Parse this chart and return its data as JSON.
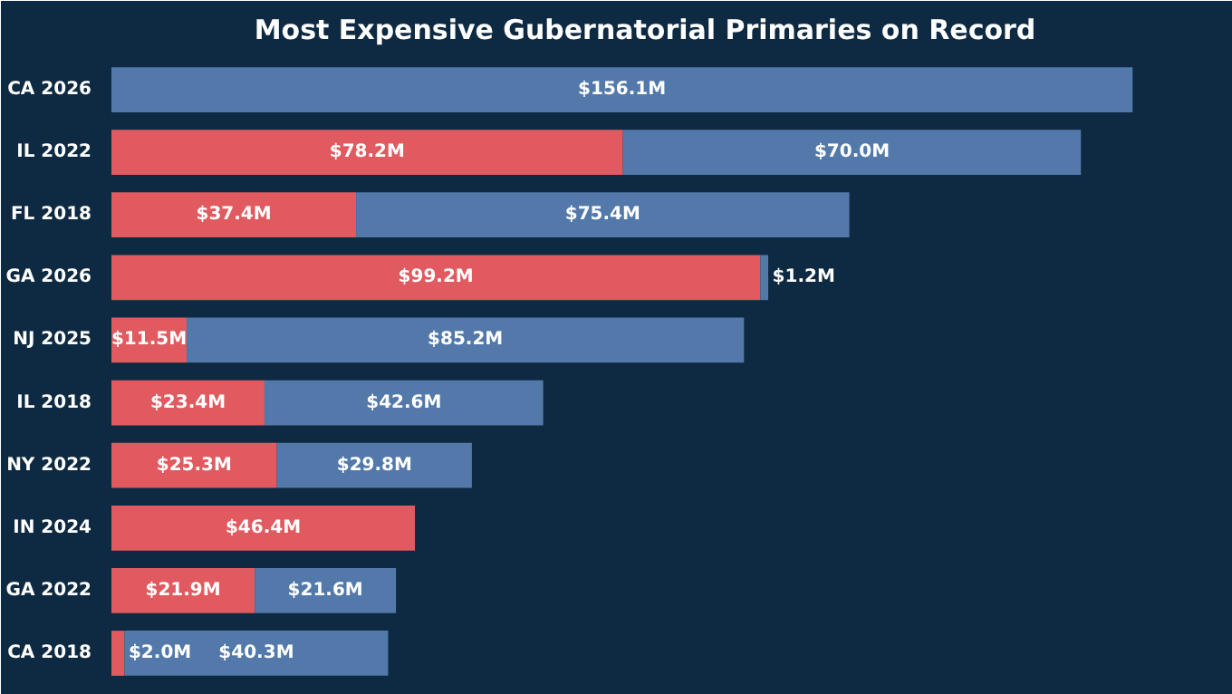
{
  "chart_data": {
    "type": "bar",
    "orientation": "horizontal",
    "stacked": true,
    "title": "Most Expensive Gubernatorial Primaries on Record",
    "categories": [
      "CA 2026",
      "IL 2022",
      "FL 2018",
      "GA 2026",
      "NJ 2025",
      "IL 2018",
      "NY 2022",
      "IN 2024",
      "GA 2022",
      "CA 2018"
    ],
    "series": [
      {
        "color": "#e05a5f",
        "values": [
          null,
          78.2,
          37.4,
          99.2,
          11.5,
          23.4,
          25.3,
          46.4,
          21.9,
          2.0
        ],
        "value_labels": [
          null,
          "$78.2M",
          "$37.4M",
          "$99.2M",
          "$11.5M",
          "$23.4M",
          "$25.3M",
          "$46.4M",
          "$21.9M",
          "$2.0M"
        ]
      },
      {
        "color": "#5279aa",
        "values": [
          156.1,
          70.0,
          75.4,
          1.2,
          85.2,
          42.6,
          29.8,
          null,
          21.6,
          40.3
        ],
        "value_labels": [
          "$156.1M",
          "$70.0M",
          "$75.4M",
          "$1.2M",
          "$85.2M",
          "$42.6M",
          "$29.8M",
          null,
          "$21.6M",
          "$40.3M"
        ]
      }
    ],
    "grid": false,
    "tick_labels": "y"
  }
}
